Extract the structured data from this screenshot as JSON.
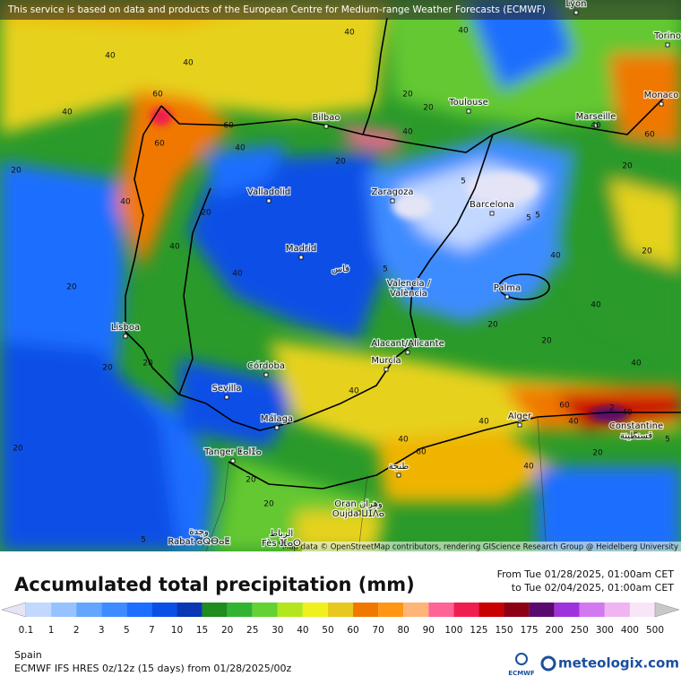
{
  "header": {
    "notice": "This service is based on data and products of the European Centre for Medium-range Weather Forecasts (ECMWF)"
  },
  "map": {
    "cities": [
      "Lyon",
      "Torino",
      "Monaco",
      "Marseille",
      "Toulouse",
      "Bilbao",
      "Zaragoza",
      "Valladolid",
      "Barcelona",
      "Madrid",
      "Palma",
      "Valencia /",
      "València",
      "Lisboa",
      "Alacant/Alicante",
      "Murcia",
      "Córdoba",
      "Sevilla",
      "Málaga",
      "Alger",
      "Constantine",
      "قسنطينة",
      "Tanger ⵟⴰⵏⵊⴰ",
      "طنجة",
      "Oran وهران",
      "Oujda ⵡⵊⴷⴰ",
      "وجدة",
      "Rabat ⴰⵕⴱⴰⵟ",
      "الرباط",
      "Fès ⴼⴰⵙ",
      "فاس"
    ],
    "contour_labels": [
      "40",
      "40",
      "40",
      "60",
      "40",
      "40",
      "20",
      "60",
      "40",
      "40",
      "40",
      "20",
      "40",
      "60",
      "40",
      "20",
      "20",
      "20",
      "5",
      "5",
      "5",
      "20",
      "20",
      "20",
      "40",
      "20",
      "40",
      "20",
      "20",
      "5",
      "40",
      "40",
      "60",
      "60",
      "40",
      "20",
      "20",
      "40",
      "40",
      "20",
      "5",
      "5",
      "40",
      "60",
      "40",
      "20",
      "20",
      "40",
      "2"
    ],
    "attribution": "Map data © OpenStreetMap contributors, rendering GIScience Research Group @ Heidelberg University"
  },
  "legend": {
    "title": "Accumulated total precipitation (mm)",
    "from": "From Tue 01/28/2025, 01:00am CET",
    "to": "to Tue 02/04/2025, 01:00am CET",
    "ticks": [
      "0.1",
      "1",
      "2",
      "3",
      "5",
      "7",
      "10",
      "15",
      "20",
      "25",
      "30",
      "40",
      "50",
      "60",
      "70",
      "80",
      "90",
      "100",
      "125",
      "150",
      "175",
      "200",
      "250",
      "300",
      "400",
      "500"
    ],
    "colors": [
      "#e4e4f6",
      "#c2d8ff",
      "#96c3ff",
      "#64a5ff",
      "#3c8cff",
      "#1e6eff",
      "#0a50e6",
      "#0a37b4",
      "#1e8c1e",
      "#32b432",
      "#64d232",
      "#b4e61e",
      "#f0f01e",
      "#e6c81e",
      "#f07800",
      "#ff9614",
      "#ffb478",
      "#ff6496",
      "#f01e50",
      "#c80000",
      "#8c0014",
      "#5a0a6e",
      "#a032dc",
      "#d278f0",
      "#f0b4f0",
      "#f8e6f8",
      "#c8c8c8"
    ]
  },
  "footer": {
    "region": "Spain",
    "model": "ECMWF IFS HRES 0z/12z (15 days) from 01/28/2025/00z",
    "ecmwf": "ECMWF",
    "brand": "meteologix.com"
  }
}
